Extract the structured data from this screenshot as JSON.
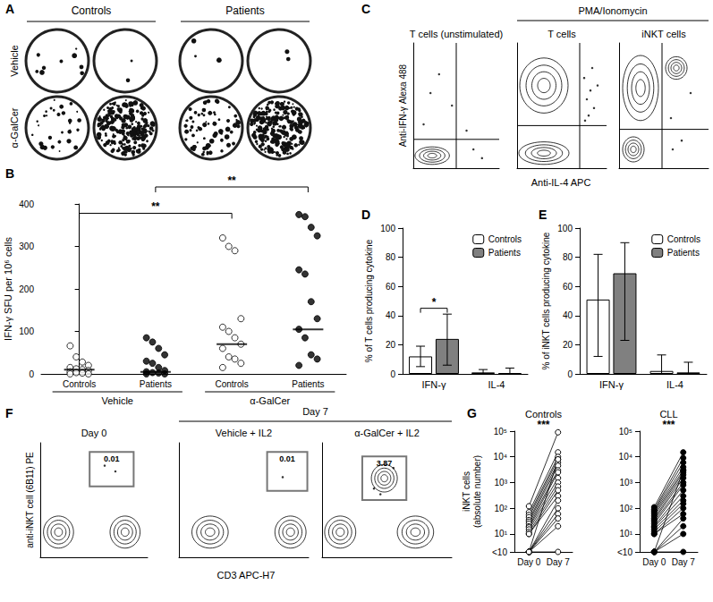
{
  "chart_data": [
    {
      "panel": "A",
      "type": "elispot",
      "column_groups": [
        {
          "label": "Controls",
          "wells": 2
        },
        {
          "label": "Patients",
          "wells": 2
        }
      ],
      "rows": [
        "Vehicle",
        "α-GalCer"
      ],
      "spots": [
        [
          9,
          2,
          3,
          2
        ],
        [
          30,
          230,
          70,
          240
        ]
      ]
    },
    {
      "panel": "B",
      "type": "scatter",
      "categories": [
        "Controls",
        "Patients",
        "Controls",
        "Patients"
      ],
      "groups": [
        {
          "label": "Vehicle",
          "categories": [
            0,
            1
          ]
        },
        {
          "label": "α-GalCer",
          "categories": [
            2,
            3
          ]
        }
      ],
      "ylabel": "IFN-γ SFU per 10⁶ cells",
      "ylim": [
        0,
        400
      ],
      "yticks": [
        0,
        100,
        200,
        300,
        400
      ],
      "markers": [
        "open",
        "filled",
        "open",
        "filled"
      ],
      "points": [
        [
          66,
          40,
          28,
          20,
          15,
          12,
          10,
          8,
          5,
          3,
          2,
          0,
          0
        ],
        [
          85,
          75,
          60,
          45,
          30,
          25,
          15,
          8,
          5,
          3,
          2,
          0,
          0
        ],
        [
          320,
          300,
          290,
          130,
          110,
          100,
          85,
          70,
          60,
          40,
          35,
          25,
          15
        ],
        [
          375,
          370,
          345,
          325,
          245,
          235,
          170,
          130,
          105,
          85,
          45,
          35,
          20
        ]
      ],
      "medians": [
        10,
        5,
        70,
        105
      ],
      "significance": [
        {
          "from": 0,
          "to": 2,
          "y": 378,
          "label": "**"
        },
        {
          "from": 1,
          "to": 3,
          "y": 440,
          "label": "**"
        }
      ]
    },
    {
      "panel": "C",
      "type": "flow",
      "xlabel": "Anti-IL-4 APC",
      "ylabel": "Anti-IFN-γ Alexa 488",
      "xlim": [
        0,
        100
      ],
      "ylim": [
        0,
        100
      ],
      "tick_labels": false,
      "header": {
        "label": "PMA/Ionomycin",
        "subplots": [
          1,
          2
        ]
      },
      "subplots": [
        {
          "title": "T cells (unstimulated)",
          "quadrant": [
            50,
            23
          ],
          "populations": [
            {
              "x": 22,
              "y": 10,
              "sx": 20,
              "sy": 7
            }
          ],
          "events": [
            [
              20,
              60
            ],
            [
              30,
              75
            ],
            [
              45,
              50
            ],
            [
              70,
              15
            ],
            [
              80,
              8
            ],
            [
              62,
              30
            ],
            [
              12,
              35
            ]
          ]
        },
        {
          "title": "T cells",
          "quadrant": [
            70,
            34
          ],
          "populations": [
            {
              "x": 30,
              "y": 12,
              "sx": 28,
              "sy": 9
            },
            {
              "x": 30,
              "y": 66,
              "sx": 27,
              "sy": 22
            }
          ],
          "events": [
            [
              78,
              55
            ],
            [
              82,
              62
            ],
            [
              75,
              72
            ],
            [
              86,
              48
            ],
            [
              80,
              42
            ],
            [
              90,
              66
            ],
            [
              84,
              80
            ],
            [
              76,
              38
            ]
          ]
        },
        {
          "title": "iNKT cells",
          "quadrant": [
            48,
            31
          ],
          "populations": [
            {
              "x": 24,
              "y": 64,
              "sx": 20,
              "sy": 26
            },
            {
              "x": 64,
              "y": 80,
              "sx": 12,
              "sy": 9
            },
            {
              "x": 16,
              "y": 15,
              "sx": 12,
              "sy": 10
            }
          ],
          "events": [
            [
              60,
              15
            ],
            [
              70,
              22
            ],
            [
              58,
              40
            ],
            [
              80,
              60
            ]
          ]
        }
      ]
    },
    {
      "panel": "D",
      "type": "bar",
      "categories": [
        "IFN-γ",
        "IL-4"
      ],
      "ylabel": "% of T cells producing cytokine",
      "ylim": [
        0,
        100
      ],
      "yticks": [
        0,
        20,
        40,
        60,
        80,
        100
      ],
      "legend": "top-right",
      "series": [
        {
          "name": "Controls",
          "color": "#ffffff",
          "values": [
            12,
            1
          ],
          "err_low": [
            5,
            0
          ],
          "err_high": [
            19,
            3
          ]
        },
        {
          "name": "Patients",
          "color": "#808080",
          "values": [
            24,
            0.5
          ],
          "err_low": [
            6,
            0
          ],
          "err_high": [
            41,
            4
          ]
        }
      ],
      "significance": [
        {
          "category": 0,
          "y": 45,
          "label": "*"
        }
      ]
    },
    {
      "panel": "E",
      "type": "bar",
      "categories": [
        "IFN-γ",
        "IL-4"
      ],
      "ylabel": "% of iNKT cells producing cytokine",
      "ylim": [
        0,
        100
      ],
      "yticks": [
        0,
        20,
        40,
        60,
        80,
        100
      ],
      "legend": "top-right",
      "series": [
        {
          "name": "Controls",
          "color": "#ffffff",
          "values": [
            51,
            2
          ],
          "err_low": [
            12,
            0
          ],
          "err_high": [
            82,
            13
          ]
        },
        {
          "name": "Patients",
          "color": "#808080",
          "values": [
            69,
            1
          ],
          "err_low": [
            23,
            0
          ],
          "err_high": [
            90,
            8
          ]
        }
      ]
    },
    {
      "panel": "F",
      "type": "flow",
      "xlabel": "CD3 APC-H7",
      "ylabel": "anti-iNKT cell (6B11) PE",
      "xlim": [
        0,
        100
      ],
      "ylim": [
        0,
        100
      ],
      "tick_labels": false,
      "header": {
        "label": "Day 7",
        "subplots": [
          1,
          2
        ]
      },
      "subplots": [
        {
          "title": "Day 0",
          "gate": {
            "x0": 46,
            "x1": 87,
            "y0": 62,
            "y1": 92,
            "label": "0.01"
          },
          "populations": [
            {
              "x": 17,
              "y": 22,
              "sx": 14,
              "sy": 14
            },
            {
              "x": 79,
              "y": 22,
              "sx": 14,
              "sy": 14
            }
          ],
          "events": [
            [
              70,
              75
            ],
            [
              60,
              80
            ]
          ]
        },
        {
          "title": "Vehicle + IL2",
          "gate": {
            "x0": 68,
            "x1": 99,
            "y0": 58,
            "y1": 92,
            "label": "0.01"
          },
          "populations": [
            {
              "x": 24,
              "y": 22,
              "sx": 14,
              "sy": 14
            },
            {
              "x": 86,
              "y": 22,
              "sx": 12,
              "sy": 14
            }
          ],
          "events": [
            [
              80,
              70
            ]
          ]
        },
        {
          "title": "α-GalCer + IL2",
          "gate": {
            "x0": 31,
            "x1": 65,
            "y0": 50,
            "y1": 88,
            "label": "3.87"
          },
          "populations": [
            {
              "x": 14,
              "y": 22,
              "sx": 12,
              "sy": 14
            },
            {
              "x": 72,
              "y": 22,
              "sx": 14,
              "sy": 14
            },
            {
              "x": 48,
              "y": 69,
              "sx": 10,
              "sy": 12
            }
          ],
          "events": [
            [
              40,
              60
            ],
            [
              55,
              78
            ],
            [
              45,
              55
            ]
          ]
        }
      ]
    },
    {
      "panel": "G",
      "type": "line",
      "categories": [
        "Day 0",
        "Day 7"
      ],
      "ylabel": "iNKT cells\n(absolute number)",
      "log": "y",
      "ylim": [
        2,
        100000
      ],
      "yticks": [
        {
          "value": 2,
          "label": "<10"
        },
        {
          "value": 10,
          "label": "10¹"
        },
        {
          "value": 100,
          "label": "10²"
        },
        {
          "value": 1000,
          "label": "10³"
        },
        {
          "value": 10000,
          "label": "10⁴"
        },
        {
          "value": 100000,
          "label": "10⁵"
        }
      ],
      "subplots": [
        {
          "title": "Controls",
          "marker": "open",
          "significance": "***",
          "pairs": [
            [
              120,
              90000
            ],
            [
              70,
              15000
            ],
            [
              55,
              10000
            ],
            [
              45,
              8000
            ],
            [
              35,
              6000
            ],
            [
              30,
              4500
            ],
            [
              25,
              3000
            ],
            [
              20,
              2500
            ],
            [
              18,
              1500
            ],
            [
              15,
              1000
            ],
            [
              12,
              700
            ],
            [
              10,
              500
            ],
            [
              10,
              300
            ],
            [
              2,
              200
            ],
            [
              2,
              100
            ],
            [
              2,
              60
            ],
            [
              2,
              40
            ],
            [
              2,
              20
            ],
            [
              2,
              2
            ],
            [
              2,
              8000
            ]
          ]
        },
        {
          "title": "CLL",
          "marker": "filled",
          "significance": "***",
          "pairs": [
            [
              110,
              15000
            ],
            [
              90,
              9000
            ],
            [
              80,
              6000
            ],
            [
              70,
              4000
            ],
            [
              60,
              3000
            ],
            [
              50,
              2500
            ],
            [
              40,
              2000
            ],
            [
              35,
              1500
            ],
            [
              30,
              1000
            ],
            [
              25,
              800
            ],
            [
              20,
              500
            ],
            [
              18,
              300
            ],
            [
              15,
              200
            ],
            [
              12,
              150
            ],
            [
              10,
              100
            ],
            [
              10,
              60
            ],
            [
              2,
              40
            ],
            [
              2,
              20
            ],
            [
              2,
              10
            ],
            [
              2,
              3000
            ],
            [
              2,
              2
            ]
          ]
        }
      ]
    }
  ]
}
